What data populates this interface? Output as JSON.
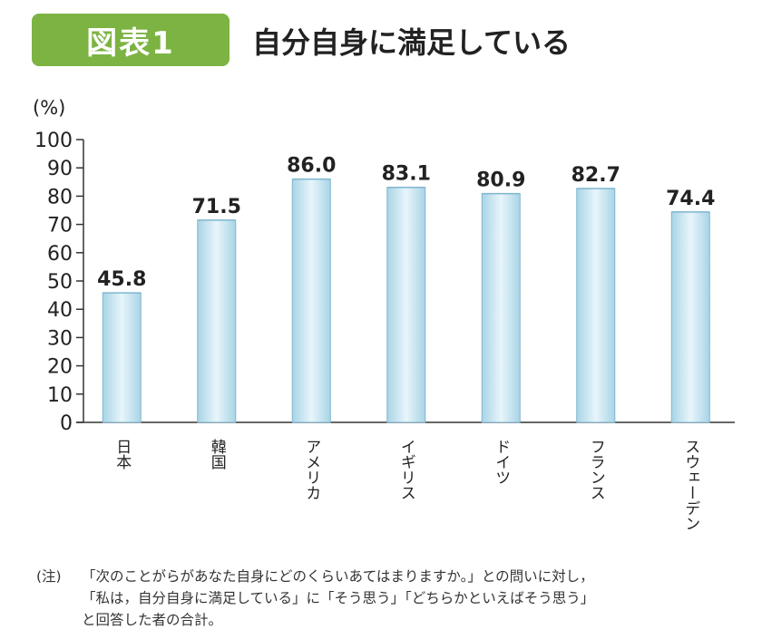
{
  "header": {
    "badge": "図表1",
    "title": "自分自身に満足している"
  },
  "colors": {
    "badge": "#7cb342",
    "bar_fill_edge": "#a8d4e6",
    "bar_fill_center": "#e8f5fb",
    "bar_stroke": "#7fb6cf"
  },
  "chart_data": {
    "type": "bar",
    "title": "自分自身に満足している",
    "ylabel": "(%)",
    "xlabel": "",
    "ylim": [
      0,
      100
    ],
    "yticks": [
      0,
      10,
      20,
      30,
      40,
      50,
      60,
      70,
      80,
      90,
      100
    ],
    "categories": [
      "日本",
      "韓国",
      "アメリカ",
      "イギリス",
      "ドイツ",
      "フランス",
      "スウェーデン"
    ],
    "values": [
      45.8,
      71.5,
      86.0,
      83.1,
      80.9,
      82.7,
      74.4
    ],
    "value_labels": [
      "45.8",
      "71.5",
      "86.0",
      "83.1",
      "80.9",
      "82.7",
      "74.4"
    ],
    "grid": false
  },
  "note": {
    "label": "(注)",
    "lines": [
      "「次のことがらがあなた自身にどのくらいあてはまりますか。」との問いに対し，",
      "「私は，自分自身に満足している」に「そう思う」「どちらかといえばそう思う」",
      "と回答した者の合計。"
    ]
  }
}
